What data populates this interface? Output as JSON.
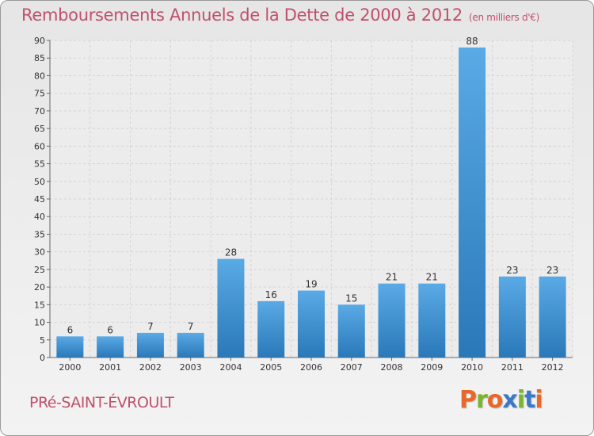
{
  "header": {
    "title": "Remboursements Annuels de la Dette de 2000 à 2012",
    "unit": "(en milliers d'€)"
  },
  "footer": {
    "commune": "PRé-SAINT-ÉVROULT",
    "logo": "Proxiti"
  },
  "colors": {
    "title": "#c0506a",
    "bar_top": "#5aaae6",
    "bar_bottom": "#2a78b8",
    "logo_letters": [
      "#e8682a",
      "#7ab52e",
      "#e8682a",
      "#3a78c8",
      "#7ab52e",
      "#3a78c8",
      "#e8682a"
    ]
  },
  "chart_data": {
    "type": "bar",
    "categories": [
      "2000",
      "2001",
      "2002",
      "2003",
      "2004",
      "2005",
      "2006",
      "2007",
      "2008",
      "2009",
      "2010",
      "2011",
      "2012"
    ],
    "values": [
      6,
      6,
      7,
      7,
      28,
      16,
      19,
      15,
      21,
      21,
      88,
      23,
      23
    ],
    "title": "Remboursements Annuels de la Dette de 2000 à 2012",
    "xlabel": "",
    "ylabel": "",
    "ylim": [
      0,
      90
    ],
    "yticks": [
      0,
      5,
      10,
      15,
      20,
      25,
      30,
      35,
      40,
      45,
      50,
      55,
      60,
      65,
      70,
      75,
      80,
      85,
      90
    ],
    "grid": true,
    "data_labels": true
  }
}
